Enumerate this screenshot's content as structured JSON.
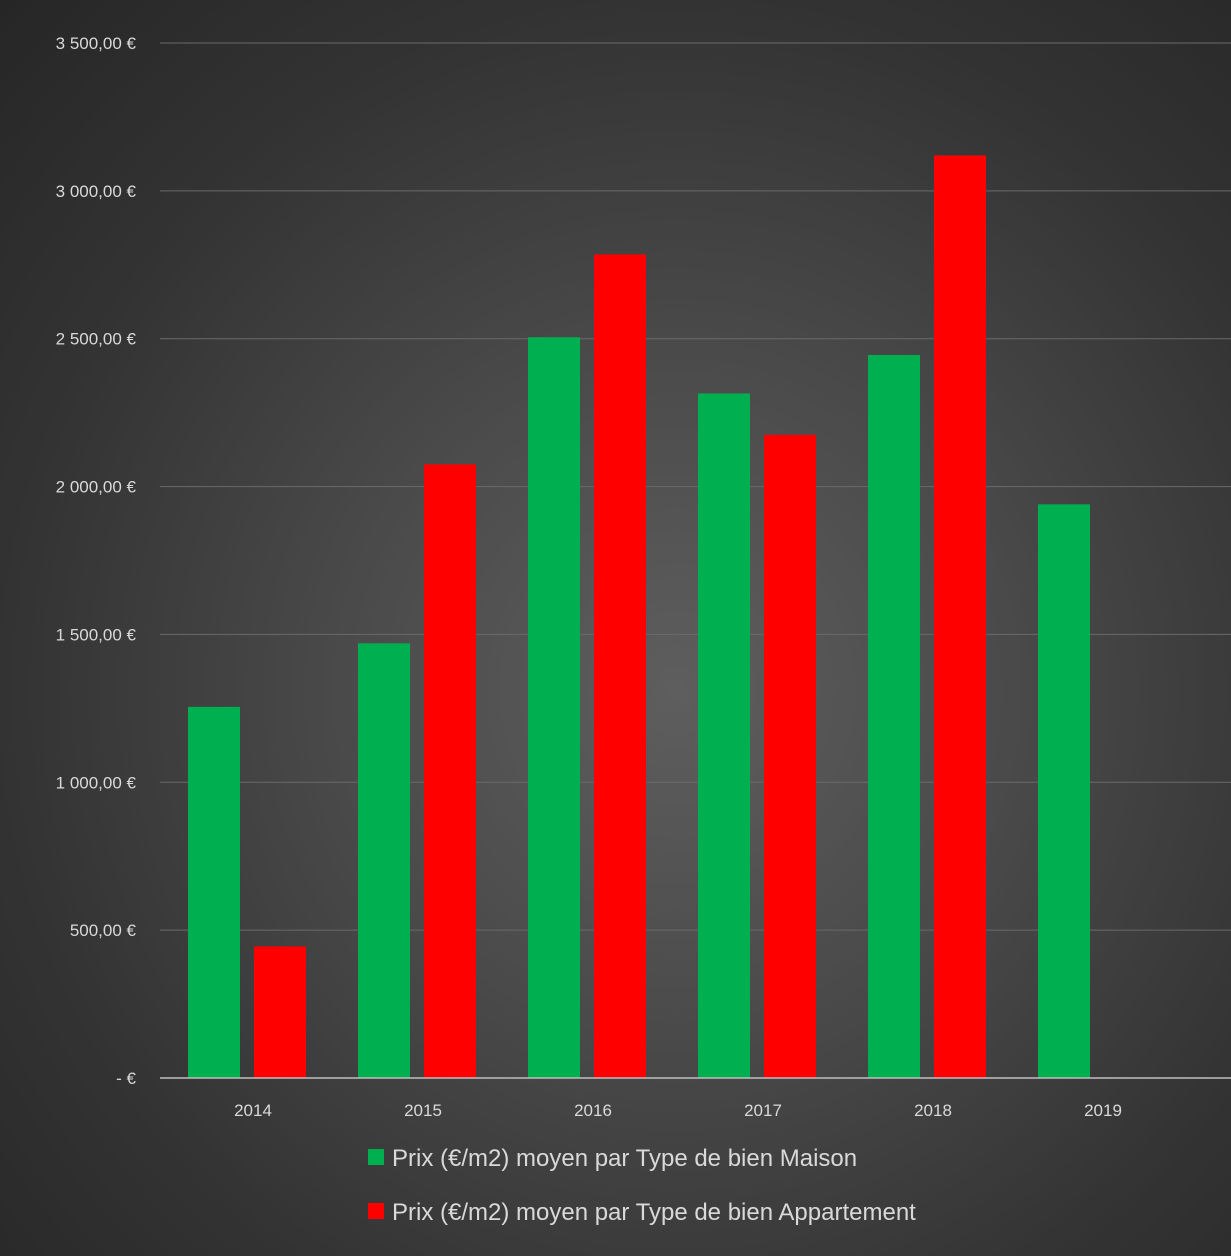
{
  "chart_data": {
    "type": "bar",
    "categories": [
      "2014",
      "2015",
      "2016",
      "2017",
      "2018",
      "2019"
    ],
    "series": [
      {
        "name": "Prix (€/m2) moyen par Type de bien Maison",
        "color": "#00b050",
        "values": [
          1255,
          1470,
          2505,
          2315,
          2445,
          1940
        ]
      },
      {
        "name": "Prix (€/m2) moyen par Type de bien Appartement",
        "color": "#ff0000",
        "values": [
          445,
          2075,
          2785,
          2175,
          3120,
          null
        ]
      }
    ],
    "ylim": [
      0,
      3500
    ],
    "y_ticks": [
      {
        "value": 0,
        "label": "-   €"
      },
      {
        "value": 500,
        "label": "500,00 €"
      },
      {
        "value": 1000,
        "label": "1 000,00 €"
      },
      {
        "value": 1500,
        "label": "1 500,00 €"
      },
      {
        "value": 2000,
        "label": "2 000,00 €"
      },
      {
        "value": 2500,
        "label": "2 500,00 €"
      },
      {
        "value": 3000,
        "label": "3 000,00 €"
      },
      {
        "value": 3500,
        "label": "3 500,00 €"
      }
    ],
    "title": "",
    "xlabel": "",
    "ylabel": "",
    "grid": true,
    "legend_position": "bottom"
  }
}
